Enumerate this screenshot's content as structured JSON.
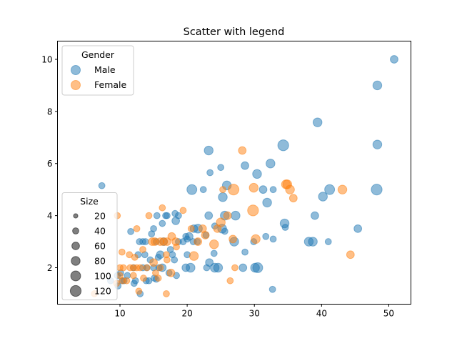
{
  "chart_data": {
    "type": "scatter",
    "title": "Scatter with legend",
    "xlabel": "",
    "ylabel": "",
    "xlim": [
      0.7,
      53.3
    ],
    "ylim": [
      0.6,
      10.7
    ],
    "xticks": [
      10,
      20,
      30,
      40,
      50
    ],
    "yticks": [
      2,
      4,
      6,
      8,
      10
    ],
    "grid": false,
    "colors": {
      "Male": "#1f77b4",
      "Female": "#ff7f0e"
    },
    "alpha": 0.5,
    "color_legend": {
      "title": "Gender",
      "placement": "upper-left",
      "entries": [
        "Male",
        "Female"
      ]
    },
    "size_legend": {
      "title": "Size",
      "placement": "lower-left",
      "entries": [
        20,
        40,
        60,
        80,
        100,
        120
      ]
    },
    "series": [
      {
        "name": "Male",
        "points": [
          [
            50.8,
            10.0,
            60
          ],
          [
            48.3,
            9.0,
            80
          ],
          [
            39.4,
            7.58,
            80
          ],
          [
            48.3,
            6.73,
            80
          ],
          [
            34.3,
            6.7,
            120
          ],
          [
            23.2,
            6.5,
            80
          ],
          [
            25.0,
            5.85,
            40
          ],
          [
            23.4,
            5.65,
            40
          ],
          [
            28.6,
            5.92,
            60
          ],
          [
            32.4,
            6.0,
            80
          ],
          [
            30.4,
            5.6,
            80
          ],
          [
            20.7,
            5.0,
            100
          ],
          [
            22.4,
            5.0,
            40
          ],
          [
            25.9,
            5.16,
            80
          ],
          [
            31.3,
            5.0,
            60
          ],
          [
            32.8,
            5.0,
            40
          ],
          [
            48.2,
            5.0,
            120
          ],
          [
            41.2,
            5.0,
            100
          ],
          [
            40.2,
            4.73,
            80
          ],
          [
            25.3,
            4.71,
            80
          ],
          [
            31.9,
            4.5,
            80
          ],
          [
            7.3,
            5.15,
            40
          ],
          [
            25.6,
            4.0,
            80
          ],
          [
            27.2,
            4.0,
            80
          ],
          [
            34.5,
            3.7,
            80
          ],
          [
            34.6,
            3.55,
            40
          ],
          [
            39.0,
            4.0,
            60
          ],
          [
            45.4,
            3.5,
            60
          ],
          [
            38.1,
            3.0,
            80
          ],
          [
            38.7,
            3.0,
            80
          ],
          [
            41.0,
            3.0,
            40
          ],
          [
            29.9,
            3.0,
            40
          ],
          [
            31.7,
            3.2,
            40
          ],
          [
            32.8,
            3.1,
            40
          ],
          [
            27.0,
            3.0,
            80
          ],
          [
            28.6,
            2.6,
            40
          ],
          [
            28.3,
            2.0,
            60
          ],
          [
            30.1,
            2.0,
            80
          ],
          [
            30.5,
            2.0,
            100
          ],
          [
            24.1,
            2.0,
            80
          ],
          [
            24.6,
            2.0,
            80
          ],
          [
            22.9,
            2.0,
            40
          ],
          [
            23.3,
            2.2,
            60
          ],
          [
            20.5,
            2.0,
            80
          ],
          [
            19.8,
            2.0,
            60
          ],
          [
            24.0,
            2.55,
            40
          ],
          [
            32.7,
            1.17,
            40
          ],
          [
            24.1,
            3.6,
            40
          ],
          [
            25.6,
            3.4,
            40
          ],
          [
            25.2,
            3.5,
            80
          ],
          [
            22.8,
            3.25,
            40
          ],
          [
            23.2,
            4.0,
            60
          ],
          [
            21.0,
            3.5,
            60
          ],
          [
            21.6,
            3.5,
            80
          ],
          [
            20.3,
            3.2,
            60
          ],
          [
            20.0,
            3.1,
            40
          ],
          [
            19.8,
            3.2,
            40
          ],
          [
            19.4,
            3.0,
            40
          ],
          [
            18.3,
            3.8,
            60
          ],
          [
            18.2,
            4.08,
            40
          ],
          [
            18.7,
            4.0,
            40
          ],
          [
            17.0,
            4.0,
            40
          ],
          [
            16.8,
            4.0,
            40
          ],
          [
            16.3,
            3.7,
            40
          ],
          [
            15.0,
            3.5,
            40
          ],
          [
            15.5,
            4.0,
            40
          ],
          [
            13.4,
            3.0,
            40
          ],
          [
            13.8,
            3.0,
            40
          ],
          [
            12.9,
            3.0,
            40
          ],
          [
            14.7,
            3.3,
            40
          ],
          [
            15.4,
            3.0,
            40
          ],
          [
            16.5,
            3.0,
            60
          ],
          [
            17.5,
            2.7,
            40
          ],
          [
            17.8,
            2.5,
            40
          ],
          [
            18.1,
            2.3,
            40
          ],
          [
            16.0,
            2.5,
            60
          ],
          [
            15.7,
            2.4,
            40
          ],
          [
            14.5,
            2.3,
            40
          ],
          [
            13.7,
            2.5,
            40
          ],
          [
            12.7,
            2.5,
            40
          ],
          [
            11.6,
            3.39,
            40
          ],
          [
            16.3,
            2.0,
            60
          ],
          [
            15.1,
            1.6,
            40
          ],
          [
            14.3,
            1.5,
            40
          ],
          [
            13.4,
            2.0,
            40
          ],
          [
            12.0,
            2.0,
            40
          ],
          [
            11.1,
            1.7,
            40
          ],
          [
            10.3,
            1.5,
            40
          ],
          [
            9.7,
            1.3,
            40
          ],
          [
            10.6,
            1.5,
            40
          ],
          [
            12.1,
            1.4,
            40
          ],
          [
            12.3,
            1.5,
            40
          ],
          [
            15.4,
            1.56,
            40
          ],
          [
            15.0,
            2.0,
            40
          ],
          [
            17.3,
            1.8,
            40
          ],
          [
            18.4,
            1.7,
            40
          ],
          [
            18.7,
            3.0,
            40
          ],
          [
            20.9,
            3.0,
            40
          ],
          [
            21.5,
            3.0,
            40
          ],
          [
            13.0,
            1.0,
            40
          ],
          [
            13.9,
            1.5,
            40
          ],
          [
            9.6,
            1.7,
            40
          ],
          [
            8.6,
            1.5,
            40
          ],
          [
            10.1,
            1.8,
            40
          ],
          [
            14.0,
            2.0,
            40
          ],
          [
            15.8,
            2.0,
            40
          ],
          [
            20.0,
            2.5,
            40
          ]
        ]
      },
      {
        "name": "Female",
        "points": [
          [
            28.2,
            6.5,
            60
          ],
          [
            34.7,
            5.2,
            80
          ],
          [
            34.9,
            5.2,
            80
          ],
          [
            35.3,
            5.0,
            80
          ],
          [
            35.8,
            4.67,
            60
          ],
          [
            26.9,
            5.0,
            120
          ],
          [
            29.9,
            5.07,
            80
          ],
          [
            43.1,
            5.0,
            80
          ],
          [
            29.8,
            4.2,
            120
          ],
          [
            25.3,
            5.0,
            40
          ],
          [
            26.0,
            4.0,
            60
          ],
          [
            25.0,
            3.74,
            80
          ],
          [
            24.5,
            3.5,
            60
          ],
          [
            24.0,
            2.9,
            80
          ],
          [
            26.8,
            3.1,
            60
          ],
          [
            30.2,
            3.1,
            80
          ],
          [
            27.1,
            2.0,
            40
          ],
          [
            26.4,
            1.5,
            40
          ],
          [
            44.3,
            2.5,
            60
          ],
          [
            22.3,
            3.5,
            60
          ],
          [
            20.6,
            3.5,
            40
          ],
          [
            22.7,
            3.25,
            60
          ],
          [
            21.0,
            2.45,
            80
          ],
          [
            21.6,
            3.0,
            60
          ],
          [
            18.3,
            3.0,
            60
          ],
          [
            17.7,
            3.2,
            60
          ],
          [
            17.0,
            3.0,
            60
          ],
          [
            16.5,
            3.0,
            60
          ],
          [
            16.0,
            3.0,
            60
          ],
          [
            15.2,
            3.0,
            60
          ],
          [
            14.8,
            3.0,
            60
          ],
          [
            19.4,
            4.2,
            40
          ],
          [
            16.3,
            4.3,
            40
          ],
          [
            14.3,
            4.0,
            40
          ],
          [
            12.5,
            3.5,
            40
          ],
          [
            9.6,
            4.0,
            40
          ],
          [
            10.3,
            2.6,
            40
          ],
          [
            11.4,
            2.5,
            40
          ],
          [
            12.2,
            2.4,
            40
          ],
          [
            13.4,
            2.7,
            40
          ],
          [
            16.9,
            2.5,
            40
          ],
          [
            17.0,
            2.3,
            40
          ],
          [
            18.4,
            2.8,
            40
          ],
          [
            15.0,
            2.2,
            60
          ],
          [
            14.0,
            2.0,
            40
          ],
          [
            15.3,
            1.8,
            40
          ],
          [
            16.0,
            2.0,
            40
          ],
          [
            13.0,
            2.0,
            40
          ],
          [
            12.5,
            2.0,
            40
          ],
          [
            12.0,
            2.0,
            40
          ],
          [
            11.5,
            2.0,
            40
          ],
          [
            10.5,
            2.0,
            40
          ],
          [
            10.0,
            2.0,
            40
          ],
          [
            10.0,
            1.7,
            40
          ],
          [
            10.4,
            1.5,
            40
          ],
          [
            11.0,
            1.5,
            40
          ],
          [
            12.0,
            1.7,
            40
          ],
          [
            17.6,
            1.8,
            60
          ],
          [
            12.8,
            1.1,
            40
          ],
          [
            16.9,
            1.0,
            40
          ],
          [
            6.2,
            1.0,
            40
          ],
          [
            9.5,
            1.4,
            40
          ],
          [
            13.5,
            1.6,
            40
          ],
          [
            15.7,
            1.6,
            40
          ]
        ]
      }
    ]
  }
}
